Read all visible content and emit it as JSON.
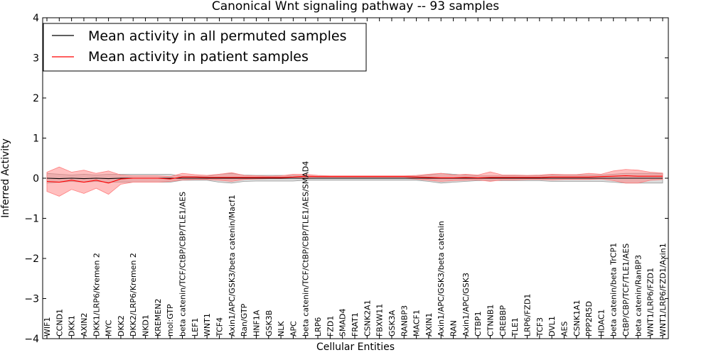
{
  "chart_data": {
    "type": "line",
    "title": "Canonical Wnt signaling pathway -- 93 samples",
    "xlabel": "Cellular Entities",
    "ylabel": "Inferred Activity",
    "ylim": [
      -4,
      4
    ],
    "yticks": [
      4,
      3,
      2,
      1,
      0,
      -1,
      -2,
      -3,
      -4
    ],
    "ytick_labels": [
      "4",
      "3",
      "2",
      "1",
      "0",
      "−1",
      "−2",
      "−3",
      "−4"
    ],
    "legend_position": "top-left",
    "categories": [
      "WIF1",
      "CCND1",
      "DKK1",
      "AXIN2",
      "DKK1/LRP6/Kremen 2",
      "MYC",
      "DKK2",
      "DKK2/LRP6/Kremen 2",
      "NKD1",
      "KREMEN2",
      "mol:GTP",
      "beta catenin/TCF/CtBP/CBP/TLE1/AES",
      "LEF1",
      "WNT1",
      "TCF4",
      "Axin1/APC/GSK3/beta catenin/Macf1",
      "Ran/GTP",
      "HNF1A",
      "GSK3B",
      "NLK",
      "APC",
      "beta catenin/TCF/CtBP/CBP/TLE1/AES/SMAD4",
      "LRP6",
      "FZD1",
      "SMAD4",
      "FRAT1",
      "CSNK2A1",
      "FBXW11",
      "GSK3A",
      "RANBP3",
      "MACF1",
      "AXIN1",
      "Axin1/APC/GSK3/beta catenin",
      "RAN",
      "Axin1/APC/GSK3",
      "CTBP1",
      "CTNNB1",
      "CREBBP",
      "TLE1",
      "LRP6/FZD1",
      "TCF3",
      "DVL1",
      "AES",
      "CSNK1A1",
      "PPP2R5D",
      "HDAC1",
      "beta catenin/beta TrCP1",
      "CtBP/CBP/TCF/TLE1/AES",
      "beta catenin/RanBP3",
      "WNT1/LRP6/FZD1",
      "WNT1/LRP6/FZD1/Axin1"
    ],
    "series": [
      {
        "name": "Mean activity in all permuted samples",
        "color": "#000000",
        "band_color": "#999999",
        "values": [
          0.0,
          -0.01,
          0.0,
          -0.01,
          0.0,
          -0.01,
          0.0,
          0.0,
          0.0,
          0.0,
          0.0,
          0.0,
          0.0,
          0.0,
          0.0,
          0.0,
          0.0,
          0.0,
          0.0,
          0.0,
          0.0,
          0.0,
          0.0,
          0.0,
          0.0,
          0.0,
          0.0,
          0.0,
          0.0,
          0.0,
          0.0,
          0.0,
          0.0,
          0.0,
          0.0,
          0.0,
          0.0,
          0.0,
          0.0,
          0.0,
          0.0,
          0.0,
          0.0,
          0.0,
          0.0,
          0.0,
          0.0,
          0.0,
          0.0,
          0.0,
          0.0
        ],
        "lower": [
          -0.12,
          -0.1,
          -0.08,
          -0.1,
          -0.08,
          -0.1,
          -0.1,
          -0.1,
          -0.1,
          -0.1,
          -0.1,
          -0.05,
          -0.05,
          -0.05,
          -0.1,
          -0.12,
          -0.08,
          -0.07,
          -0.07,
          -0.07,
          -0.07,
          -0.05,
          -0.05,
          -0.05,
          -0.05,
          -0.05,
          -0.05,
          -0.05,
          -0.05,
          -0.05,
          -0.05,
          -0.08,
          -0.12,
          -0.1,
          -0.08,
          -0.06,
          -0.06,
          -0.06,
          -0.06,
          -0.06,
          -0.06,
          -0.08,
          -0.08,
          -0.08,
          -0.08,
          -0.08,
          -0.1,
          -0.12,
          -0.12,
          -0.12,
          -0.12
        ],
        "upper": [
          0.12,
          0.1,
          0.08,
          0.1,
          0.08,
          0.1,
          0.1,
          0.1,
          0.1,
          0.1,
          0.1,
          0.05,
          0.05,
          0.05,
          0.1,
          0.12,
          0.08,
          0.07,
          0.07,
          0.07,
          0.07,
          0.05,
          0.05,
          0.05,
          0.05,
          0.05,
          0.05,
          0.05,
          0.05,
          0.05,
          0.05,
          0.08,
          0.12,
          0.1,
          0.08,
          0.06,
          0.06,
          0.06,
          0.06,
          0.06,
          0.06,
          0.08,
          0.08,
          0.08,
          0.08,
          0.08,
          0.1,
          0.12,
          0.12,
          0.12,
          0.12
        ]
      },
      {
        "name": "Mean activity in patient samples",
        "color": "#ff0000",
        "band_color": "#ff8080",
        "values": [
          -0.08,
          -0.1,
          -0.05,
          -0.1,
          -0.05,
          -0.12,
          -0.02,
          0.0,
          0.0,
          0.0,
          -0.02,
          0.03,
          0.03,
          0.02,
          0.02,
          0.02,
          0.02,
          0.02,
          0.02,
          0.02,
          0.03,
          0.05,
          0.04,
          0.04,
          0.04,
          0.04,
          0.04,
          0.04,
          0.04,
          0.04,
          0.03,
          0.02,
          0.01,
          0.01,
          0.02,
          0.01,
          0.02,
          0.02,
          0.02,
          0.02,
          0.02,
          0.03,
          0.03,
          0.03,
          0.03,
          0.04,
          0.05,
          0.06,
          0.05,
          0.05,
          0.05
        ],
        "lower": [
          -0.33,
          -0.45,
          -0.28,
          -0.38,
          -0.25,
          -0.4,
          -0.15,
          -0.1,
          -0.1,
          -0.1,
          -0.08,
          -0.04,
          -0.03,
          -0.03,
          -0.05,
          -0.08,
          -0.03,
          -0.02,
          -0.01,
          -0.01,
          0.0,
          0.02,
          0.0,
          0.0,
          0.0,
          0.0,
          0.0,
          0.0,
          0.0,
          0.0,
          -0.02,
          -0.05,
          -0.08,
          -0.06,
          -0.05,
          -0.04,
          -0.08,
          -0.04,
          -0.04,
          -0.03,
          -0.03,
          -0.04,
          -0.03,
          -0.03,
          -0.03,
          -0.02,
          -0.06,
          -0.12,
          -0.12,
          -0.05,
          -0.03
        ],
        "upper": [
          0.15,
          0.28,
          0.15,
          0.2,
          0.12,
          0.18,
          0.08,
          0.06,
          0.06,
          0.06,
          0.04,
          0.12,
          0.09,
          0.07,
          0.1,
          0.14,
          0.07,
          0.06,
          0.05,
          0.06,
          0.1,
          0.1,
          0.07,
          0.06,
          0.06,
          0.06,
          0.06,
          0.06,
          0.06,
          0.06,
          0.07,
          0.1,
          0.12,
          0.08,
          0.1,
          0.08,
          0.16,
          0.08,
          0.08,
          0.07,
          0.08,
          0.1,
          0.09,
          0.09,
          0.12,
          0.1,
          0.18,
          0.22,
          0.2,
          0.15,
          0.13
        ]
      }
    ]
  }
}
